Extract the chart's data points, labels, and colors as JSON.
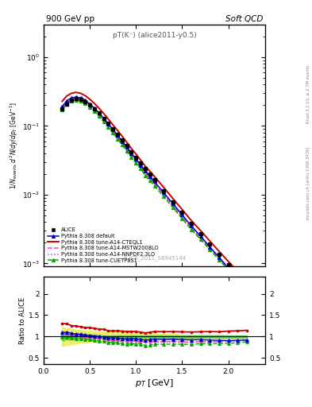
{
  "title_top": "900 GeV pp",
  "title_right": "Soft QCD",
  "annotation": "pT(K⁻) (alice2011-y0.5)",
  "watermark": "ALICE_2011_S8945144",
  "rivet_text": "Rivet 3.1.10, ≥ 2.7M events",
  "mcplots_text": "mcplots.cern.ch [arXiv:1306.3436]",
  "ylabel_main": "1/N_events d²N/dy/dp_T [GeV⁻¹]",
  "ylabel_ratio": "Ratio to ALICE",
  "xlabel": "p_T [GeV]",
  "ylim_main_lo": 0.0009,
  "ylim_main_hi": 3.0,
  "ylim_ratio_lo": 0.35,
  "ylim_ratio_hi": 2.4,
  "alice_pt": [
    0.2,
    0.25,
    0.3,
    0.35,
    0.4,
    0.45,
    0.5,
    0.55,
    0.6,
    0.65,
    0.7,
    0.75,
    0.8,
    0.85,
    0.9,
    0.95,
    1.0,
    1.05,
    1.1,
    1.15,
    1.2,
    1.3,
    1.4,
    1.5,
    1.6,
    1.7,
    1.8,
    1.9,
    2.0,
    2.1,
    2.2
  ],
  "alice_y": [
    0.175,
    0.21,
    0.238,
    0.248,
    0.243,
    0.228,
    0.203,
    0.179,
    0.154,
    0.13,
    0.111,
    0.092,
    0.076,
    0.063,
    0.052,
    0.042,
    0.035,
    0.029,
    0.024,
    0.02,
    0.0165,
    0.0115,
    0.0079,
    0.0055,
    0.0038,
    0.0027,
    0.0019,
    0.00135,
    0.00095,
    0.00068,
    0.00048
  ],
  "pythia_pt": [
    0.2,
    0.25,
    0.3,
    0.35,
    0.4,
    0.45,
    0.5,
    0.55,
    0.6,
    0.65,
    0.7,
    0.75,
    0.8,
    0.85,
    0.9,
    0.95,
    1.0,
    1.05,
    1.1,
    1.15,
    1.2,
    1.3,
    1.4,
    1.5,
    1.6,
    1.7,
    1.8,
    1.9,
    2.0,
    2.1,
    2.2
  ],
  "default_y": [
    0.191,
    0.232,
    0.256,
    0.263,
    0.256,
    0.236,
    0.208,
    0.181,
    0.154,
    0.129,
    0.107,
    0.089,
    0.073,
    0.06,
    0.049,
    0.04,
    0.033,
    0.027,
    0.022,
    0.0185,
    0.0155,
    0.0107,
    0.0074,
    0.0051,
    0.0035,
    0.0025,
    0.00174,
    0.00123,
    0.00086,
    0.00062,
    0.00044
  ],
  "cteql1_y": [
    0.228,
    0.273,
    0.299,
    0.308,
    0.299,
    0.276,
    0.245,
    0.213,
    0.181,
    0.152,
    0.126,
    0.104,
    0.086,
    0.071,
    0.058,
    0.047,
    0.039,
    0.032,
    0.026,
    0.022,
    0.0184,
    0.0128,
    0.0088,
    0.0061,
    0.0042,
    0.003,
    0.00212,
    0.0015,
    0.00107,
    0.00077,
    0.00055
  ],
  "mstw_y": [
    0.182,
    0.221,
    0.244,
    0.252,
    0.245,
    0.225,
    0.199,
    0.173,
    0.147,
    0.123,
    0.102,
    0.084,
    0.069,
    0.057,
    0.046,
    0.038,
    0.031,
    0.025,
    0.021,
    0.0174,
    0.0146,
    0.0101,
    0.007,
    0.0048,
    0.0033,
    0.00237,
    0.00167,
    0.00119,
    0.00085,
    0.00061,
    0.00044
  ],
  "nnpdf_y": [
    0.18,
    0.218,
    0.241,
    0.249,
    0.242,
    0.222,
    0.197,
    0.171,
    0.146,
    0.122,
    0.101,
    0.083,
    0.068,
    0.056,
    0.046,
    0.037,
    0.031,
    0.025,
    0.021,
    0.0172,
    0.0144,
    0.01,
    0.0069,
    0.0048,
    0.0033,
    0.00237,
    0.00168,
    0.00119,
    0.00085,
    0.00061,
    0.00044
  ],
  "cuetp_y": [
    0.172,
    0.209,
    0.231,
    0.238,
    0.232,
    0.213,
    0.188,
    0.163,
    0.138,
    0.116,
    0.096,
    0.079,
    0.065,
    0.053,
    0.043,
    0.035,
    0.029,
    0.024,
    0.019,
    0.016,
    0.0135,
    0.0094,
    0.0065,
    0.0045,
    0.0031,
    0.00224,
    0.00159,
    0.00113,
    0.0008,
    0.00058,
    0.00042
  ],
  "band_inner_lo": [
    0.92,
    0.93,
    0.94,
    0.95,
    0.95,
    0.96,
    0.96,
    0.96,
    0.97,
    0.97,
    0.97,
    0.97,
    0.97,
    0.97,
    0.97,
    0.97,
    0.97,
    0.97,
    0.97,
    0.97,
    0.97,
    0.97,
    0.97,
    0.97,
    0.97,
    0.97,
    0.97,
    0.97,
    0.97,
    0.97,
    0.97
  ],
  "band_inner_hi": [
    1.08,
    1.07,
    1.06,
    1.05,
    1.05,
    1.04,
    1.04,
    1.04,
    1.03,
    1.03,
    1.03,
    1.03,
    1.03,
    1.03,
    1.03,
    1.03,
    1.03,
    1.03,
    1.03,
    1.03,
    1.03,
    1.03,
    1.03,
    1.03,
    1.03,
    1.03,
    1.03,
    1.03,
    1.03,
    1.03,
    1.03
  ],
  "band_outer_lo": [
    0.78,
    0.8,
    0.82,
    0.84,
    0.85,
    0.86,
    0.87,
    0.88,
    0.88,
    0.89,
    0.89,
    0.89,
    0.9,
    0.9,
    0.9,
    0.91,
    0.91,
    0.92,
    0.92,
    0.92,
    0.93,
    0.93,
    0.94,
    0.95,
    0.95,
    0.96,
    0.96,
    0.96,
    0.97,
    0.97,
    0.97
  ],
  "band_outer_hi": [
    1.22,
    1.2,
    1.18,
    1.16,
    1.15,
    1.14,
    1.13,
    1.12,
    1.12,
    1.11,
    1.11,
    1.11,
    1.1,
    1.1,
    1.1,
    1.09,
    1.09,
    1.08,
    1.08,
    1.08,
    1.07,
    1.07,
    1.06,
    1.05,
    1.05,
    1.04,
    1.04,
    1.04,
    1.03,
    1.03,
    1.03
  ],
  "color_default": "#0000cc",
  "color_cteql1": "#cc0000",
  "color_mstw": "#ff44aa",
  "color_nnpdf": "#cc44cc",
  "color_cuetp": "#00aa00",
  "color_alice": "#000000",
  "color_band_inner": "#66cc66",
  "color_band_outer": "#eeee66"
}
